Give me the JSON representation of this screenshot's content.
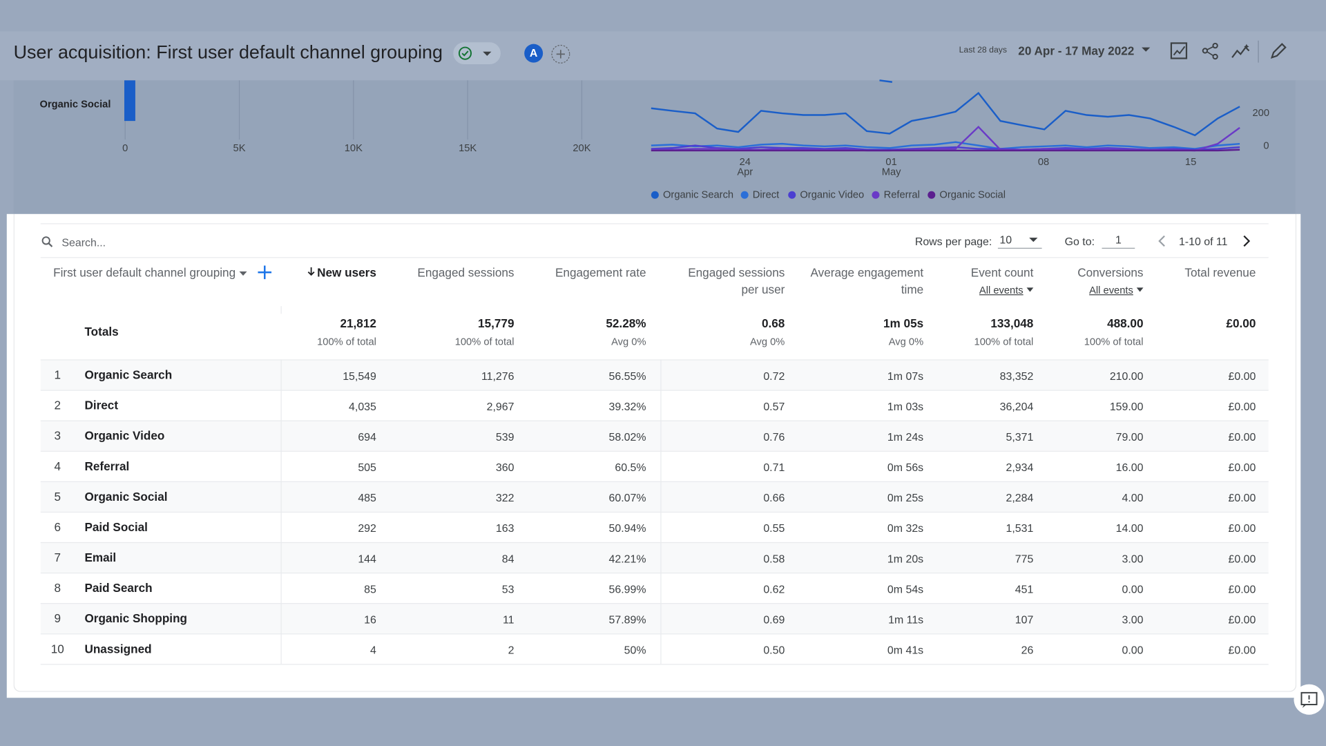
{
  "header": {
    "title": "User acquisition: First user default channel grouping",
    "avatar": "A",
    "date_prefix": "Last 28 days",
    "date_range": "20 Apr - 17 May 2022"
  },
  "bar_chart": {
    "category": "Organic Social",
    "x_ticks": [
      "0",
      "5K",
      "10K",
      "15K",
      "20K"
    ]
  },
  "line_chart": {
    "y_ticks": [
      "200",
      "0"
    ],
    "x_ticks": [
      {
        "day": "24",
        "month": "Apr"
      },
      {
        "day": "01",
        "month": "May"
      },
      {
        "day": "08"
      },
      {
        "day": "15"
      }
    ],
    "legend": [
      "Organic Search",
      "Direct",
      "Organic Video",
      "Referral",
      "Organic Social"
    ]
  },
  "table": {
    "search_placeholder": "Search...",
    "rows_per_page_label": "Rows per page:",
    "rows_per_page": "10",
    "goto_label": "Go to:",
    "goto_value": "1",
    "page_range": "1-10 of 11",
    "dimension_header": "First user default channel grouping",
    "columns": [
      {
        "label": "New users"
      },
      {
        "label": "Engaged sessions"
      },
      {
        "label": "Engagement rate"
      },
      {
        "label": "Engaged sessions per user"
      },
      {
        "label": "Average engagement time"
      },
      {
        "label": "Event count",
        "filter": "All events"
      },
      {
        "label": "Conversions",
        "filter": "All events"
      },
      {
        "label": "Total revenue"
      }
    ],
    "totals": {
      "label": "Totals",
      "cells": [
        {
          "value": "21,812",
          "note": "100% of total"
        },
        {
          "value": "15,779",
          "note": "100% of total"
        },
        {
          "value": "52.28%",
          "note": "Avg 0%"
        },
        {
          "value": "0.68",
          "note": "Avg 0%"
        },
        {
          "value": "1m 05s",
          "note": "Avg 0%"
        },
        {
          "value": "133,048",
          "note": "100% of total"
        },
        {
          "value": "488.00",
          "note": "100% of total"
        },
        {
          "value": "£0.00"
        }
      ]
    },
    "rows": [
      {
        "index": 1,
        "name": "Organic Search",
        "values": [
          "15,549",
          "11,276",
          "56.55%",
          "0.72",
          "1m 07s",
          "83,352",
          "210.00",
          "£0.00"
        ]
      },
      {
        "index": 2,
        "name": "Direct",
        "values": [
          "4,035",
          "2,967",
          "39.32%",
          "0.57",
          "1m 03s",
          "36,204",
          "159.00",
          "£0.00"
        ]
      },
      {
        "index": 3,
        "name": "Organic Video",
        "values": [
          "694",
          "539",
          "58.02%",
          "0.76",
          "1m 24s",
          "5,371",
          "79.00",
          "£0.00"
        ]
      },
      {
        "index": 4,
        "name": "Referral",
        "values": [
          "505",
          "360",
          "60.5%",
          "0.71",
          "0m 56s",
          "2,934",
          "16.00",
          "£0.00"
        ]
      },
      {
        "index": 5,
        "name": "Organic Social",
        "values": [
          "485",
          "322",
          "60.07%",
          "0.66",
          "0m 25s",
          "2,284",
          "4.00",
          "£0.00"
        ]
      },
      {
        "index": 6,
        "name": "Paid Social",
        "values": [
          "292",
          "163",
          "50.94%",
          "0.55",
          "0m 32s",
          "1,531",
          "14.00",
          "£0.00"
        ]
      },
      {
        "index": 7,
        "name": "Email",
        "values": [
          "144",
          "84",
          "42.21%",
          "0.58",
          "1m 20s",
          "775",
          "3.00",
          "£0.00"
        ]
      },
      {
        "index": 8,
        "name": "Paid Search",
        "values": [
          "85",
          "53",
          "56.99%",
          "0.62",
          "0m 54s",
          "451",
          "0.00",
          "£0.00"
        ]
      },
      {
        "index": 9,
        "name": "Organic Shopping",
        "values": [
          "16",
          "11",
          "57.89%",
          "0.69",
          "1m 11s",
          "107",
          "3.00",
          "£0.00"
        ]
      },
      {
        "index": 10,
        "name": "Unassigned",
        "values": [
          "4",
          "2",
          "50%",
          "0.50",
          "0m 41s",
          "26",
          "0.00",
          "£0.00"
        ]
      }
    ]
  }
}
